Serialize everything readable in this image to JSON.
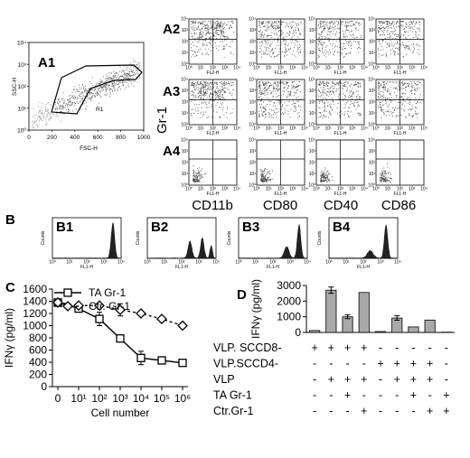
{
  "panel_a": {
    "a1": {
      "letter": "A1",
      "gate_label": "R1",
      "xlabel": "FSC-H",
      "ylabel": "SSC-H",
      "x_ticks": [
        "0",
        "200",
        "400",
        "600",
        "800",
        "1000"
      ],
      "y_ticks": [
        "10⁰",
        "10¹",
        "10²",
        "10³",
        "10⁴"
      ]
    },
    "row_letters": [
      "A2",
      "A3",
      "A4"
    ],
    "row_axis_label": "Gr-1",
    "column_labels": [
      "CD11b",
      "CD80",
      "CD40",
      "CD86"
    ],
    "grid_xlabels": [
      [
        "FL2-H",
        "FL1-H",
        "FL1-H",
        "FL1-H"
      ],
      [
        "FL2-H",
        "FL1-H",
        "FL1-H",
        "FL1-H"
      ],
      [
        "FL1-H",
        "FL1-H",
        "FL1-H",
        "FL1-H"
      ]
    ]
  },
  "panel_b": {
    "letter": "B",
    "sub_letters": [
      "B1",
      "B2",
      "B3",
      "B4"
    ],
    "ylabel": "Counts",
    "xlabel": "FL1-H"
  },
  "chart_data": [
    {
      "type": "line",
      "panel": "C",
      "xlabel": "Cell number",
      "ylabel": "IFNγ (pg/ml)",
      "x_tick_labels": [
        "0",
        "10¹",
        "10²",
        "10³",
        "10⁴",
        "10⁵",
        "10⁶"
      ],
      "x": [
        0,
        1,
        2,
        3,
        4,
        5,
        6
      ],
      "ylim": [
        0,
        1600
      ],
      "y_ticks": [
        0,
        200,
        400,
        600,
        800,
        1000,
        1200,
        1400,
        1600
      ],
      "series": [
        {
          "name": "TA Gr-1",
          "marker": "square",
          "line": "solid",
          "values": [
            1380,
            1280,
            1110,
            790,
            470,
            430,
            390
          ],
          "errors": [
            30,
            40,
            110,
            0,
            110,
            0,
            0
          ]
        },
        {
          "name": "Ctr. Gr-1",
          "marker": "diamond",
          "line": "dashed",
          "values": [
            1380,
            1330,
            1330,
            1260,
            1200,
            1110,
            1000
          ],
          "errors": [
            30,
            0,
            0,
            100,
            0,
            0,
            0
          ]
        }
      ]
    },
    {
      "type": "bar",
      "panel": "D",
      "ylabel": "IFNγ (pg/ml)",
      "ylim": [
        0,
        3000
      ],
      "y_ticks": [
        0,
        1000,
        2000,
        3000
      ],
      "values": [
        120,
        2700,
        1000,
        2550,
        60,
        920,
        350,
        790,
        20
      ],
      "errors": [
        0,
        200,
        120,
        0,
        0,
        140,
        0,
        0,
        0
      ],
      "conditions": [
        {
          "label": "VLP. SCCD8-",
          "signs": [
            "+",
            "+",
            "+",
            "+",
            "-",
            "-",
            "-",
            "-",
            "-"
          ]
        },
        {
          "label": "VLP.SCCD4-",
          "signs": [
            "-",
            "-",
            "-",
            "-",
            "+",
            "+",
            "+",
            "+",
            "-"
          ]
        },
        {
          "label": "VLP",
          "signs": [
            "-",
            "+",
            "+",
            "+",
            "-",
            "+",
            "+",
            "+",
            "-"
          ]
        },
        {
          "label": "TA  Gr-1",
          "signs": [
            "-",
            "-",
            "+",
            "-",
            "-",
            "-",
            "+",
            "-",
            "+"
          ]
        },
        {
          "label": "Ctr.Gr-1",
          "signs": [
            "-",
            "-",
            "-",
            "+",
            "-",
            "-",
            "-",
            "+",
            "+"
          ]
        }
      ]
    }
  ]
}
